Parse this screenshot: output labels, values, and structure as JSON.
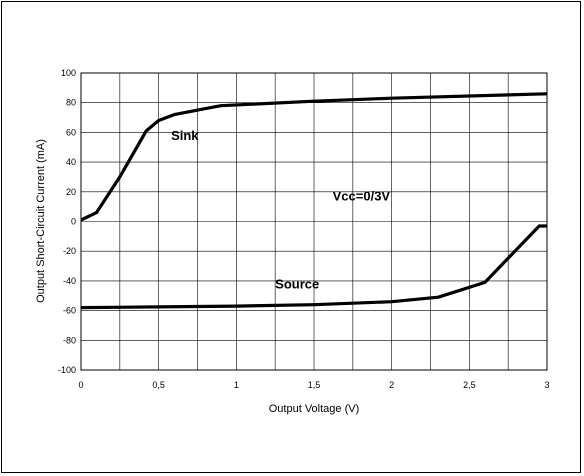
{
  "chart_data": {
    "type": "line",
    "title": "",
    "xlabel": "Output Voltage (V)",
    "ylabel": "Output Short-Circuit Current (mA)",
    "xlim": [
      0,
      3
    ],
    "ylim": [
      -100,
      100
    ],
    "x_ticks": [
      0,
      0.5,
      1,
      1.5,
      2,
      2.5,
      3
    ],
    "x_tick_labels": [
      "0",
      "0,5",
      "1",
      "1,5",
      "2",
      "2,5",
      "3"
    ],
    "y_ticks": [
      100,
      80,
      60,
      40,
      20,
      0,
      -20,
      -40,
      -60,
      -80,
      -100
    ],
    "y_tick_labels": [
      "100",
      "80",
      "60",
      "40",
      "20",
      "0",
      "-20",
      "-40",
      "-60",
      "-80",
      "-100"
    ],
    "grid": true,
    "series": [
      {
        "name": "Sink",
        "x": [
          0,
          0.1,
          0.25,
          0.42,
          0.5,
          0.6,
          0.9,
          1.5,
          2.0,
          3.0
        ],
        "y": [
          1,
          6,
          30,
          61,
          68,
          72,
          78,
          81,
          83,
          86
        ]
      },
      {
        "name": "Source",
        "x": [
          0,
          0.5,
          1.0,
          1.5,
          2.0,
          2.3,
          2.6,
          2.95,
          3.0
        ],
        "y": [
          -58,
          -57.5,
          -57,
          -56,
          -54,
          -51,
          -41,
          -3,
          -3
        ]
      }
    ],
    "annotations": [
      {
        "text": "Sink",
        "x": 0.58,
        "y": 55
      },
      {
        "text": "Vcc=0/3V",
        "x": 1.62,
        "y": 14
      },
      {
        "text": "Source",
        "x": 1.25,
        "y": -45
      }
    ]
  }
}
